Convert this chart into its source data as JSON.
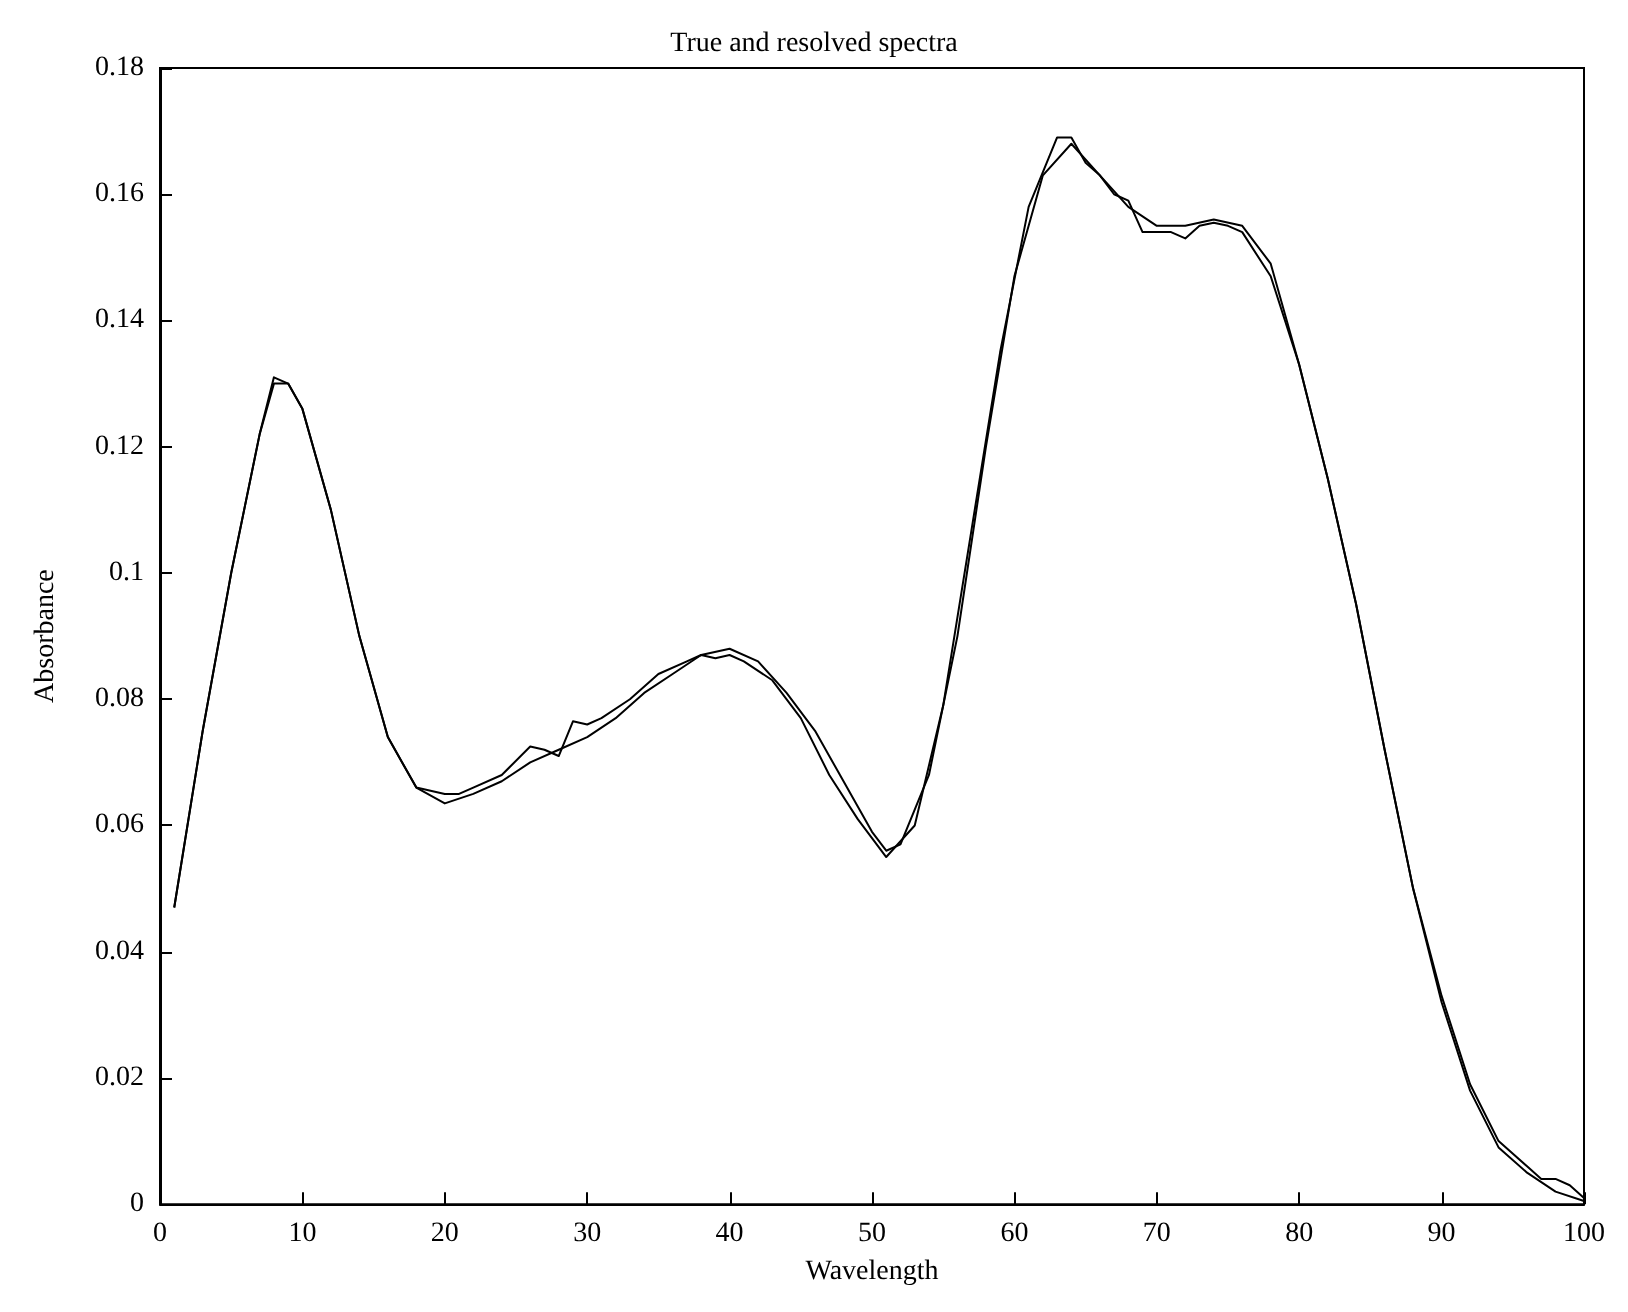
{
  "chart_data": {
    "type": "line",
    "title": "True and resolved spectra",
    "xlabel": "Wavelength",
    "ylabel": "Absorbance",
    "xlim": [
      0,
      100
    ],
    "xticks": [
      0,
      10,
      20,
      30,
      40,
      50,
      60,
      70,
      80,
      90,
      100
    ],
    "ylim": [
      0,
      0.18
    ],
    "yticks": [
      0,
      0.02,
      0.04,
      0.06,
      0.08,
      0.1,
      0.12,
      0.14,
      0.16,
      0.18
    ],
    "grid": false,
    "marker": "none",
    "line_style": "solid",
    "series": [
      {
        "color": "#000000",
        "x": [
          1,
          3,
          5,
          7,
          8,
          9,
          10,
          12,
          14,
          16,
          18,
          20,
          22,
          24,
          26,
          28,
          30,
          32,
          34,
          36,
          38,
          40,
          42,
          44,
          46,
          48,
          50,
          51,
          52,
          54,
          56,
          58,
          60,
          62,
          64,
          66,
          68,
          70,
          72,
          74,
          76,
          78,
          80,
          82,
          84,
          86,
          88,
          90,
          92,
          94,
          96,
          98,
          100
        ],
        "values": [
          0.047,
          0.075,
          0.1,
          0.122,
          0.13,
          0.13,
          0.126,
          0.11,
          0.09,
          0.074,
          0.066,
          0.0635,
          0.065,
          0.067,
          0.07,
          0.072,
          0.074,
          0.077,
          0.081,
          0.084,
          0.087,
          0.088,
          0.086,
          0.081,
          0.075,
          0.067,
          0.059,
          0.056,
          0.057,
          0.068,
          0.09,
          0.12,
          0.147,
          0.163,
          0.168,
          0.163,
          0.158,
          0.155,
          0.155,
          0.156,
          0.155,
          0.149,
          0.133,
          0.115,
          0.095,
          0.072,
          0.05,
          0.032,
          0.018,
          0.009,
          0.005,
          0.002,
          0.0005
        ]
      },
      {
        "color": "#000000",
        "x": [
          1,
          3,
          5,
          7,
          8,
          9,
          10,
          12,
          14,
          16,
          18,
          20,
          21,
          22,
          24,
          26,
          27,
          28,
          29,
          30,
          31,
          33,
          35,
          37,
          38,
          39,
          40,
          41,
          43,
          45,
          47,
          49,
          51,
          53,
          55,
          57,
          59,
          61,
          63,
          64,
          65,
          66,
          67,
          68,
          69,
          70,
          71,
          72,
          73,
          74,
          75,
          76,
          78,
          80,
          82,
          84,
          86,
          88,
          90,
          91,
          92,
          94,
          96,
          97,
          98,
          99,
          100
        ],
        "values": [
          0.047,
          0.075,
          0.1,
          0.122,
          0.131,
          0.13,
          0.126,
          0.11,
          0.09,
          0.074,
          0.066,
          0.065,
          0.065,
          0.066,
          0.068,
          0.0725,
          0.072,
          0.071,
          0.0765,
          0.076,
          0.077,
          0.08,
          0.084,
          0.086,
          0.087,
          0.0865,
          0.087,
          0.086,
          0.083,
          0.077,
          0.068,
          0.061,
          0.055,
          0.06,
          0.079,
          0.107,
          0.135,
          0.158,
          0.169,
          0.169,
          0.165,
          0.163,
          0.16,
          0.159,
          0.154,
          0.154,
          0.154,
          0.153,
          0.155,
          0.1555,
          0.155,
          0.154,
          0.147,
          0.133,
          0.115,
          0.095,
          0.072,
          0.05,
          0.033,
          0.026,
          0.019,
          0.01,
          0.006,
          0.004,
          0.004,
          0.003,
          0.001
        ]
      }
    ]
  }
}
